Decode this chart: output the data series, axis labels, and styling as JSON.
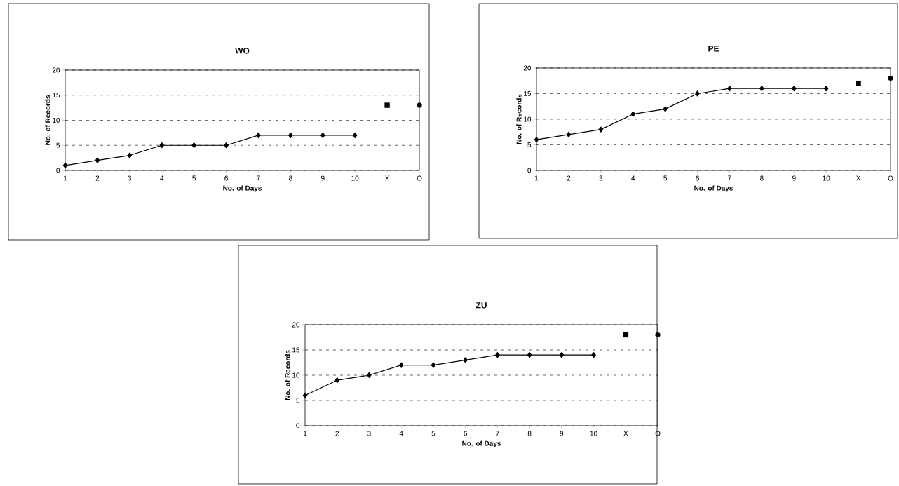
{
  "chart_data": [
    {
      "type": "line",
      "title": "WO",
      "xlabel": "No. of Days",
      "ylabel": "No. of Records",
      "categories": [
        "1",
        "2",
        "3",
        "4",
        "5",
        "6",
        "7",
        "8",
        "9",
        "10",
        "X",
        "O"
      ],
      "ylim": [
        0,
        20
      ],
      "yticks": [
        0,
        5,
        10,
        15,
        20
      ],
      "grid": "y",
      "series": [
        {
          "marker": "diamond",
          "color": "#000000",
          "values": [
            1,
            2,
            3,
            5,
            5,
            5,
            7,
            7,
            7,
            7,
            null,
            null
          ]
        },
        {
          "type": "scatter",
          "marker": "square",
          "color": "#000000",
          "values": [
            null,
            null,
            null,
            null,
            null,
            null,
            null,
            null,
            null,
            null,
            13,
            null
          ]
        },
        {
          "type": "scatter",
          "marker": "circle",
          "color": "#000000",
          "values": [
            null,
            null,
            null,
            null,
            null,
            null,
            null,
            null,
            null,
            null,
            null,
            13
          ]
        }
      ]
    },
    {
      "type": "line",
      "title": "PE",
      "xlabel": "No. of Days",
      "ylabel": "No. of Records",
      "categories": [
        "1",
        "2",
        "3",
        "4",
        "5",
        "6",
        "7",
        "8",
        "9",
        "10",
        "X",
        "O"
      ],
      "ylim": [
        0,
        20
      ],
      "yticks": [
        0,
        5,
        10,
        15,
        20
      ],
      "grid": "y",
      "series": [
        {
          "marker": "diamond",
          "color": "#000000",
          "values": [
            6,
            7,
            8,
            11,
            12,
            15,
            16,
            16,
            16,
            16,
            null,
            null
          ]
        },
        {
          "type": "scatter",
          "marker": "square",
          "color": "#000000",
          "values": [
            null,
            null,
            null,
            null,
            null,
            null,
            null,
            null,
            null,
            null,
            17,
            null
          ]
        },
        {
          "type": "scatter",
          "marker": "circle",
          "color": "#000000",
          "values": [
            null,
            null,
            null,
            null,
            null,
            null,
            null,
            null,
            null,
            null,
            null,
            18
          ]
        }
      ]
    },
    {
      "type": "line",
      "title": "ZU",
      "xlabel": "No. of Days",
      "ylabel": "No. of Records",
      "categories": [
        "1",
        "2",
        "3",
        "4",
        "5",
        "6",
        "7",
        "8",
        "9",
        "10",
        "X",
        "O"
      ],
      "ylim": [
        0,
        20
      ],
      "yticks": [
        0,
        5,
        10,
        15,
        20
      ],
      "grid": "y",
      "series": [
        {
          "marker": "diamond",
          "color": "#000000",
          "values": [
            6,
            9,
            10,
            12,
            12,
            13,
            14,
            14,
            14,
            14,
            null,
            null
          ]
        },
        {
          "type": "scatter",
          "marker": "square",
          "color": "#000000",
          "values": [
            null,
            null,
            null,
            null,
            null,
            null,
            null,
            null,
            null,
            null,
            18,
            null
          ]
        },
        {
          "type": "scatter",
          "marker": "circle",
          "color": "#000000",
          "values": [
            null,
            null,
            null,
            null,
            null,
            null,
            null,
            null,
            null,
            null,
            null,
            18
          ]
        }
      ]
    }
  ]
}
